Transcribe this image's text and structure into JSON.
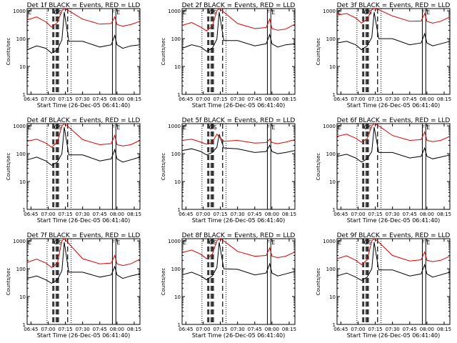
{
  "colors": {
    "events": "#000000",
    "lld": "#e00000",
    "background": "#ffffff"
  },
  "xlabel": "Start Time (26-Dec-05 06:41:40)",
  "ylabel": "Counts/sec",
  "x_ticks": [
    "06:45",
    "07:00",
    "07:15",
    "07:30",
    "07:45",
    "08:00",
    "08:15"
  ],
  "y_ticks": [
    "1",
    "10",
    "100",
    "1000"
  ],
  "chart_data": [
    {
      "type": "line",
      "panel_title": "Det 1f BLACK = Events, RED = LLD",
      "corner_label": "E",
      "marker_labels": [
        "GS",
        "F",
        "E"
      ],
      "xlim": [
        "06:41:40",
        "08:20:00"
      ],
      "ylim": [
        1,
        1200
      ],
      "log_y": true,
      "series": [
        {
          "name": "Events",
          "x": [
            "06:41:40",
            "06:50",
            "06:58",
            "07:03",
            "07:08",
            "07:12",
            "07:14",
            "07:18",
            "07:30",
            "07:45",
            "07:55",
            "07:58",
            "08:00",
            "08:05",
            "08:12",
            "08:20"
          ],
          "values": [
            40,
            55,
            45,
            30,
            40,
            90,
            900,
            80,
            80,
            50,
            60,
            130,
            60,
            45,
            55,
            60
          ]
        },
        {
          "name": "LLD",
          "x": [
            "06:41:40",
            "06:50",
            "06:58",
            "07:03",
            "07:08",
            "07:12",
            "07:14",
            "07:18",
            "07:30",
            "07:45",
            "07:55",
            "07:58",
            "08:00",
            "08:05",
            "08:12",
            "08:20"
          ],
          "values": [
            470,
            600,
            400,
            260,
            380,
            1000,
            1200,
            1000,
            500,
            330,
            350,
            600,
            320,
            280,
            320,
            420
          ]
        }
      ]
    },
    {
      "type": "line",
      "panel_title": "Det 2f BLACK = Events, RED = LLD",
      "corner_label": "E",
      "marker_labels": [
        "GS",
        "F",
        "E"
      ],
      "xlim": [
        "06:41:40",
        "08:20:00"
      ],
      "ylim": [
        1,
        1200
      ],
      "log_y": true,
      "series": [
        {
          "name": "Events",
          "x": [
            "06:41:40",
            "06:50",
            "06:58",
            "07:03",
            "07:08",
            "07:12",
            "07:14",
            "07:18",
            "07:30",
            "07:45",
            "07:55",
            "07:58",
            "08:00",
            "08:05",
            "08:12",
            "08:20"
          ],
          "values": [
            45,
            60,
            50,
            35,
            45,
            95,
            900,
            85,
            85,
            55,
            65,
            140,
            65,
            50,
            60,
            65
          ]
        },
        {
          "name": "LLD",
          "x": [
            "06:41:40",
            "06:50",
            "06:58",
            "07:03",
            "07:08",
            "07:12",
            "07:14",
            "07:18",
            "07:30",
            "07:45",
            "07:55",
            "07:58",
            "08:00",
            "08:05",
            "08:12",
            "08:20"
          ],
          "values": [
            300,
            380,
            260,
            190,
            280,
            1000,
            1200,
            900,
            350,
            230,
            250,
            500,
            230,
            200,
            220,
            330
          ]
        }
      ]
    },
    {
      "type": "line",
      "panel_title": "Det 3f BLACK = Events, RED = LLD",
      "corner_label": "E",
      "marker_labels": [
        "GS",
        "F",
        "E"
      ],
      "xlim": [
        "06:41:40",
        "08:20:00"
      ],
      "ylim": [
        1,
        1200
      ],
      "log_y": true,
      "series": [
        {
          "name": "Events",
          "x": [
            "06:41:40",
            "06:50",
            "06:58",
            "07:03",
            "07:08",
            "07:12",
            "07:14",
            "07:18",
            "07:30",
            "07:45",
            "07:55",
            "07:58",
            "08:00",
            "08:05",
            "08:12",
            "08:20"
          ],
          "values": [
            70,
            80,
            60,
            40,
            55,
            110,
            900,
            100,
            100,
            60,
            70,
            150,
            70,
            55,
            65,
            80
          ]
        },
        {
          "name": "LLD",
          "x": [
            "06:41:40",
            "06:50",
            "06:58",
            "07:03",
            "07:08",
            "07:12",
            "07:14",
            "07:18",
            "07:30",
            "07:45",
            "07:55",
            "07:58",
            "08:00",
            "08:05",
            "08:12",
            "08:20"
          ],
          "values": [
            700,
            800,
            550,
            360,
            500,
            1100,
            1200,
            1100,
            650,
            420,
            430,
            800,
            420,
            360,
            420,
            600
          ]
        }
      ]
    },
    {
      "type": "line",
      "panel_title": "Det 4f BLACK = Events, RED = LLD",
      "corner_label": "E",
      "marker_labels": [
        "GS",
        "F",
        "E"
      ],
      "xlim": [
        "06:41:40",
        "08:20:00"
      ],
      "ylim": [
        1,
        1200
      ],
      "log_y": true,
      "series": [
        {
          "name": "Events",
          "x": [
            "06:41:40",
            "06:50",
            "06:58",
            "07:03",
            "07:08",
            "07:12",
            "07:14",
            "07:18",
            "07:30",
            "07:45",
            "07:55",
            "07:58",
            "08:00",
            "08:05",
            "08:12",
            "08:20"
          ],
          "values": [
            60,
            75,
            55,
            38,
            50,
            100,
            900,
            90,
            90,
            55,
            65,
            140,
            65,
            50,
            60,
            75
          ]
        },
        {
          "name": "LLD",
          "x": [
            "06:41:40",
            "06:50",
            "06:58",
            "07:03",
            "07:08",
            "07:12",
            "07:14",
            "07:18",
            "07:30",
            "07:45",
            "07:55",
            "07:58",
            "08:00",
            "08:05",
            "08:12",
            "08:20"
          ],
          "values": [
            280,
            330,
            240,
            170,
            260,
            1000,
            1200,
            900,
            320,
            210,
            230,
            450,
            210,
            190,
            210,
            300
          ]
        }
      ]
    },
    {
      "type": "line",
      "panel_title": "Det 5f BLACK = Events, RED = LLD",
      "corner_label": "E",
      "marker_labels": [
        "GS",
        "F",
        "E"
      ],
      "xlim": [
        "06:41:40",
        "08:20:00"
      ],
      "ylim": [
        1,
        1200
      ],
      "log_y": true,
      "series": [
        {
          "name": "Events",
          "x": [
            "06:41:40",
            "06:50",
            "06:58",
            "07:03",
            "07:08",
            "07:12",
            "07:14",
            "07:18",
            "07:30",
            "07:45",
            "07:55",
            "07:58",
            "08:00",
            "08:05",
            "08:12",
            "08:20"
          ],
          "values": [
            130,
            150,
            120,
            90,
            110,
            170,
            500,
            160,
            150,
            110,
            120,
            200,
            120,
            100,
            110,
            130
          ]
        },
        {
          "name": "LLD",
          "x": [
            "06:41:40",
            "06:50",
            "06:58",
            "07:03",
            "07:08",
            "07:12",
            "07:14",
            "07:18",
            "07:30",
            "07:45",
            "07:55",
            "07:58",
            "08:00",
            "08:05",
            "08:12",
            "08:20"
          ],
          "values": [
            300,
            330,
            260,
            220,
            250,
            500,
            400,
            280,
            300,
            240,
            250,
            330,
            250,
            230,
            260,
            320
          ]
        }
      ]
    },
    {
      "type": "line",
      "panel_title": "Det 6f BLACK = Events, RED = LLD",
      "corner_label": "E",
      "marker_labels": [
        "GS",
        "F",
        "E"
      ],
      "xlim": [
        "06:41:40",
        "08:20:00"
      ],
      "ylim": [
        1,
        1200
      ],
      "log_y": true,
      "series": [
        {
          "name": "Events",
          "x": [
            "06:41:40",
            "06:50",
            "06:58",
            "07:03",
            "07:08",
            "07:12",
            "07:14",
            "07:18",
            "07:30",
            "07:45",
            "07:55",
            "07:58",
            "08:00",
            "08:05",
            "08:12",
            "08:20"
          ],
          "values": [
            80,
            95,
            70,
            50,
            65,
            120,
            900,
            110,
            110,
            70,
            80,
            160,
            80,
            65,
            75,
            90
          ]
        },
        {
          "name": "LLD",
          "x": [
            "06:41:40",
            "06:50",
            "06:58",
            "07:03",
            "07:08",
            "07:12",
            "07:14",
            "07:18",
            "07:30",
            "07:45",
            "07:55",
            "07:58",
            "08:00",
            "08:05",
            "08:12",
            "08:20"
          ],
          "values": [
            420,
            500,
            360,
            260,
            350,
            1000,
            1200,
            1000,
            450,
            300,
            320,
            600,
            300,
            270,
            300,
            420
          ]
        }
      ]
    },
    {
      "type": "line",
      "panel_title": "Det 7f BLACK = Events, RED = LLD",
      "corner_label": "E",
      "marker_labels": [
        "GS",
        "F",
        "E"
      ],
      "xlim": [
        "06:41:40",
        "08:20:00"
      ],
      "ylim": [
        1,
        1200
      ],
      "log_y": true,
      "series": [
        {
          "name": "Events",
          "x": [
            "06:41:40",
            "06:50",
            "06:58",
            "07:03",
            "07:08",
            "07:12",
            "07:14",
            "07:18",
            "07:30",
            "07:45",
            "07:55",
            "07:58",
            "08:00",
            "08:05",
            "08:12",
            "08:20"
          ],
          "values": [
            45,
            55,
            40,
            30,
            40,
            85,
            900,
            75,
            75,
            50,
            60,
            120,
            60,
            45,
            55,
            65
          ]
        },
        {
          "name": "LLD",
          "x": [
            "06:41:40",
            "06:50",
            "06:58",
            "07:03",
            "07:08",
            "07:12",
            "07:14",
            "07:18",
            "07:30",
            "07:45",
            "07:55",
            "07:58",
            "08:00",
            "08:05",
            "08:12",
            "08:20"
          ],
          "values": [
            170,
            220,
            160,
            110,
            160,
            1000,
            1200,
            800,
            230,
            150,
            160,
            300,
            150,
            130,
            150,
            220
          ]
        }
      ]
    },
    {
      "type": "line",
      "panel_title": "Det 8f BLACK = Events, RED = LLD",
      "corner_label": "E",
      "marker_labels": [
        "GS",
        "F",
        "E"
      ],
      "xlim": [
        "06:41:40",
        "08:20:00"
      ],
      "ylim": [
        1,
        1200
      ],
      "log_y": true,
      "series": [
        {
          "name": "Events",
          "x": [
            "06:41:40",
            "06:50",
            "06:58",
            "07:03",
            "07:08",
            "07:12",
            "07:14",
            "07:18",
            "07:30",
            "07:45",
            "07:55",
            "07:58",
            "08:00",
            "08:05",
            "08:12",
            "08:20"
          ],
          "values": [
            60,
            75,
            55,
            40,
            55,
            110,
            900,
            100,
            95,
            60,
            70,
            150,
            70,
            55,
            65,
            80
          ]
        },
        {
          "name": "LLD",
          "x": [
            "06:41:40",
            "06:50",
            "06:58",
            "07:03",
            "07:08",
            "07:12",
            "07:14",
            "07:18",
            "07:30",
            "07:45",
            "07:55",
            "07:58",
            "08:00",
            "08:05",
            "08:12",
            "08:20"
          ],
          "values": [
            380,
            470,
            330,
            230,
            330,
            1000,
            1200,
            1000,
            420,
            280,
            300,
            560,
            280,
            250,
            280,
            400
          ]
        }
      ]
    },
    {
      "type": "line",
      "panel_title": "Det 9f BLACK = Events, RED = LLD",
      "corner_label": "E",
      "marker_labels": [
        "GS",
        "F",
        "E"
      ],
      "xlim": [
        "06:41:40",
        "08:20:00"
      ],
      "ylim": [
        1,
        1200
      ],
      "log_y": true,
      "series": [
        {
          "name": "Events",
          "x": [
            "06:41:40",
            "06:50",
            "06:58",
            "07:03",
            "07:08",
            "07:12",
            "07:14",
            "07:18",
            "07:30",
            "07:45",
            "07:55",
            "07:58",
            "08:00",
            "08:05",
            "08:12",
            "08:20"
          ],
          "values": [
            55,
            70,
            50,
            38,
            50,
            100,
            900,
            90,
            90,
            55,
            65,
            140,
            65,
            50,
            60,
            75
          ]
        },
        {
          "name": "LLD",
          "x": [
            "06:41:40",
            "06:50",
            "06:58",
            "07:03",
            "07:08",
            "07:12",
            "07:14",
            "07:18",
            "07:30",
            "07:45",
            "07:55",
            "07:58",
            "08:00",
            "08:05",
            "08:12",
            "08:20"
          ],
          "values": [
            230,
            290,
            200,
            140,
            210,
            1000,
            1200,
            900,
            300,
            190,
            210,
            400,
            200,
            180,
            200,
            280
          ]
        }
      ]
    }
  ]
}
